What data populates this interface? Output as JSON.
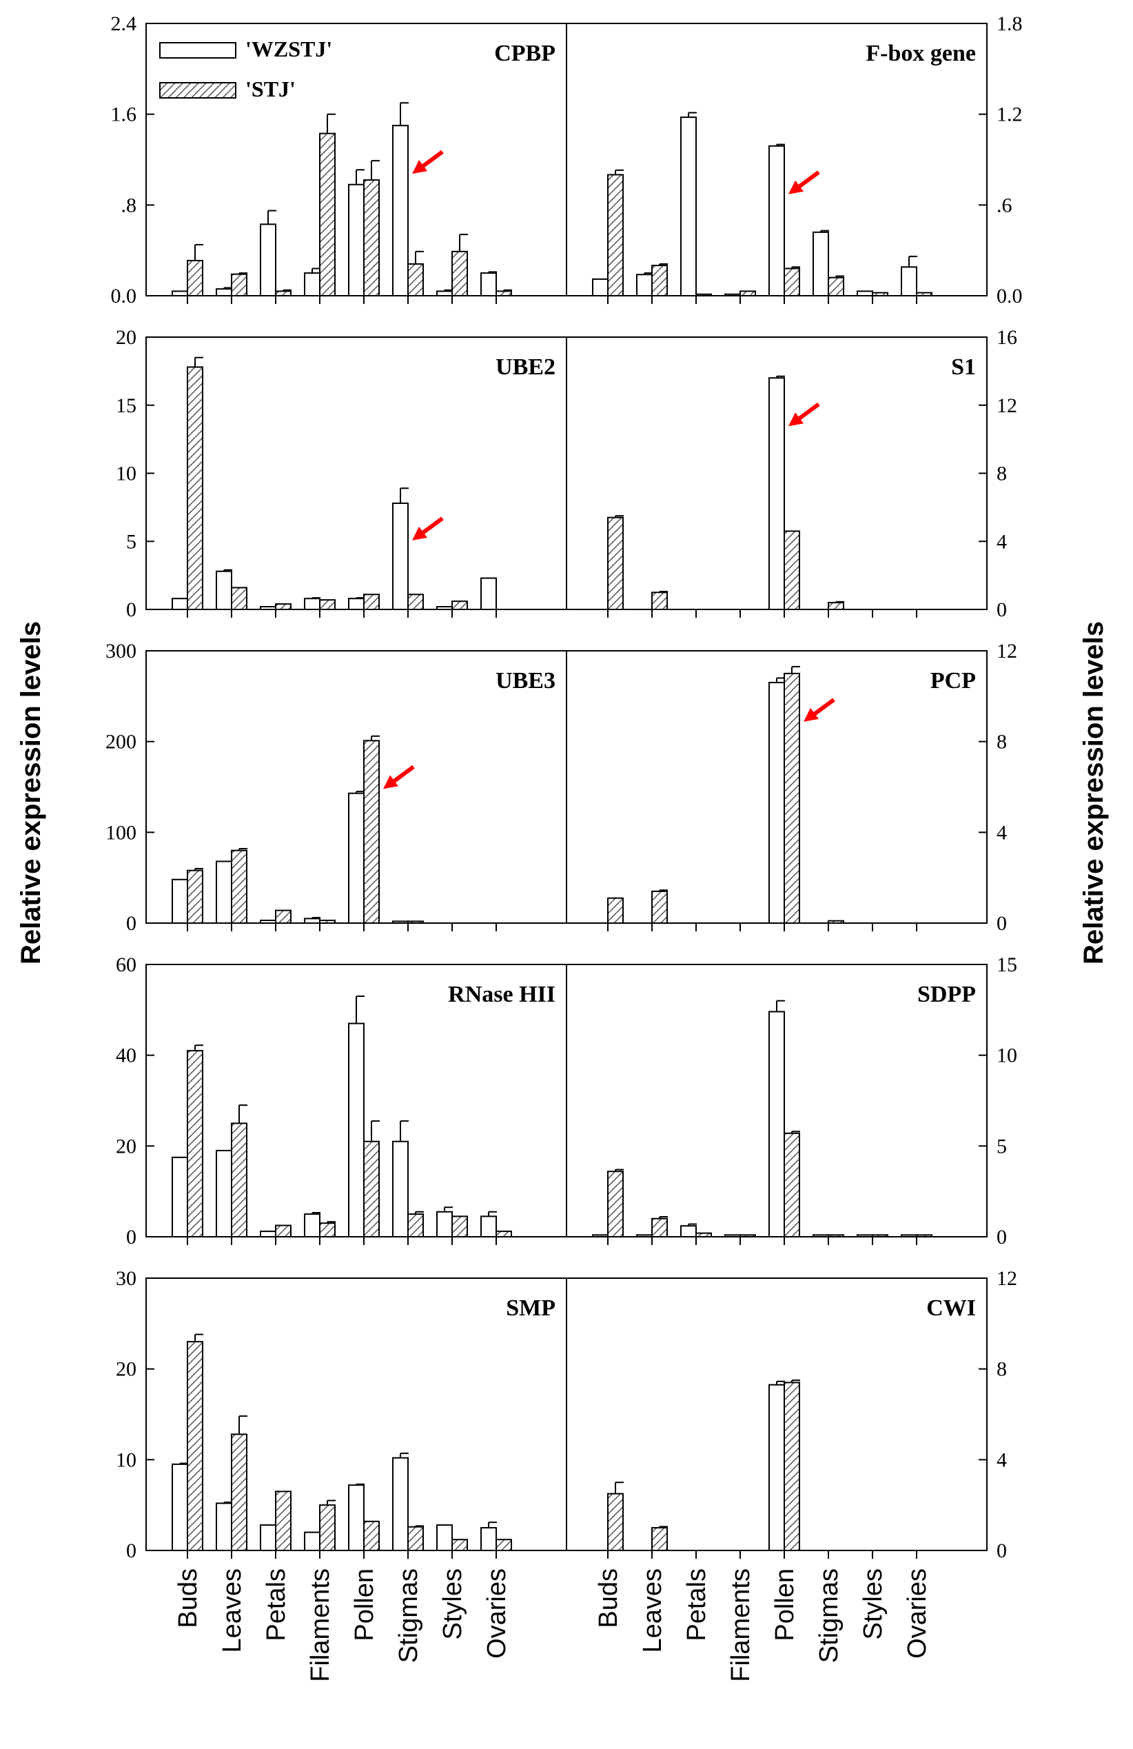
{
  "chart_data": {
    "type": "bar",
    "ylabel": "Relative expression levels",
    "categories": [
      "Buds",
      "Leaves",
      "Petals",
      "Filaments",
      "Pollen",
      "Stigmas",
      "Styles",
      "Ovaries"
    ],
    "legend": [
      {
        "name": "'WZSTJ'",
        "pattern": "open"
      },
      {
        "name": "'STJ'",
        "pattern": "hatched"
      }
    ],
    "arrow_color": "#ff0000",
    "panels": [
      {
        "title": "CPBP",
        "side": "left",
        "ylim": [
          0,
          2.4
        ],
        "ticks": [
          0,
          0.8,
          1.6,
          2.4
        ],
        "tick_labels": [
          "0.0",
          ".8",
          "1.6",
          "2.4"
        ],
        "series": [
          {
            "name": "'WZSTJ'",
            "values": [
              0.04,
              0.06,
              0.63,
              0.2,
              0.98,
              1.5,
              0.04,
              0.2
            ],
            "errors": [
              0,
              0.01,
              0.12,
              0.04,
              0.13,
              0.2,
              0.01,
              0.01
            ]
          },
          {
            "name": "'STJ'",
            "values": [
              0.31,
              0.19,
              0.04,
              1.43,
              1.02,
              0.28,
              0.39,
              0.04
            ],
            "errors": [
              0.14,
              0.01,
              0.01,
              0.17,
              0.17,
              0.11,
              0.15,
              0.01
            ]
          }
        ],
        "arrow": {
          "category": "Stigmas",
          "series": "'WZSTJ'"
        }
      },
      {
        "title": "F-box gene",
        "side": "right",
        "ylim": [
          0,
          1.8
        ],
        "ticks": [
          0,
          0.6,
          1.2,
          1.8
        ],
        "tick_labels": [
          "0.0",
          ".6",
          "1.2",
          "1.8"
        ],
        "series": [
          {
            "name": "'WZSTJ'",
            "values": [
              0.11,
              0.14,
              1.18,
              0.01,
              0.99,
              0.42,
              0.03,
              0.19
            ],
            "errors": [
              0,
              0.01,
              0.03,
              0,
              0.01,
              0.01,
              0,
              0.07
            ]
          },
          {
            "name": "'STJ'",
            "values": [
              0.8,
              0.2,
              0.01,
              0.03,
              0.18,
              0.12,
              0.02,
              0.02
            ],
            "errors": [
              0.03,
              0.01,
              0,
              0,
              0.01,
              0.01,
              0,
              0
            ]
          }
        ],
        "arrow": {
          "category": "Pollen",
          "series": "'WZSTJ'"
        }
      },
      {
        "title": "UBE2",
        "side": "left",
        "ylim": [
          0,
          20
        ],
        "ticks": [
          0,
          5,
          10,
          15,
          20
        ],
        "tick_labels": [
          "0",
          "5",
          "10",
          "15",
          "20"
        ],
        "series": [
          {
            "name": "'WZSTJ'",
            "values": [
              0.8,
              2.8,
              0.2,
              0.8,
              0.8,
              7.8,
              0.2,
              2.3
            ],
            "errors": [
              0,
              0.1,
              0,
              0.05,
              0.05,
              1.1,
              0,
              0
            ]
          },
          {
            "name": "'STJ'",
            "values": [
              17.8,
              1.6,
              0.4,
              0.7,
              1.1,
              1.1,
              0.6,
              0
            ],
            "errors": [
              0.7,
              0,
              0,
              0,
              0,
              0,
              0,
              0
            ]
          }
        ],
        "arrow": {
          "category": "Stigmas",
          "series": "'WZSTJ'"
        }
      },
      {
        "title": "S1",
        "side": "right",
        "ylim": [
          0,
          16
        ],
        "ticks": [
          0,
          4,
          8,
          12,
          16
        ],
        "tick_labels": [
          "0",
          "4",
          "8",
          "12",
          "16"
        ],
        "series": [
          {
            "name": "'WZSTJ'",
            "values": [
              0,
              0,
              0,
              0,
              13.6,
              0,
              0,
              0
            ],
            "errors": [
              0,
              0,
              0,
              0,
              0.1,
              0,
              0,
              0
            ]
          },
          {
            "name": "'STJ'",
            "values": [
              5.4,
              1.0,
              0,
              0,
              4.6,
              0.4,
              0,
              0
            ],
            "errors": [
              0.1,
              0.05,
              0,
              0,
              0,
              0.05,
              0,
              0
            ]
          }
        ],
        "arrow": {
          "category": "Pollen",
          "series": "'WZSTJ'"
        }
      },
      {
        "title": "UBE3",
        "side": "left",
        "ylim": [
          0,
          300
        ],
        "ticks": [
          0,
          100,
          200,
          300
        ],
        "tick_labels": [
          "0",
          "100",
          "200",
          "300"
        ],
        "series": [
          {
            "name": "'WZSTJ'",
            "values": [
              48,
              68,
              3,
              5,
              143,
              2,
              0,
              0
            ],
            "errors": [
              0,
              0,
              0,
              1,
              2,
              0,
              0,
              0
            ]
          },
          {
            "name": "'STJ'",
            "values": [
              58,
              80,
              14,
              3,
              201,
              2,
              0,
              0
            ],
            "errors": [
              2,
              2,
              0,
              0,
              5,
              0,
              0,
              0
            ]
          }
        ],
        "arrow": {
          "category": "Pollen",
          "series": "'STJ'"
        }
      },
      {
        "title": "PCP",
        "side": "right",
        "ylim": [
          0,
          12
        ],
        "ticks": [
          0,
          4,
          8,
          12
        ],
        "tick_labels": [
          "0",
          "4",
          "8",
          "12"
        ],
        "series": [
          {
            "name": "'WZSTJ'",
            "values": [
              0,
              0,
              0,
              0,
              10.6,
              0,
              0,
              0
            ],
            "errors": [
              0,
              0,
              0,
              0,
              0.2,
              0,
              0,
              0
            ]
          },
          {
            "name": "'STJ'",
            "values": [
              1.1,
              1.4,
              0,
              0,
              11.0,
              0.1,
              0,
              0
            ],
            "errors": [
              0,
              0.05,
              0,
              0,
              0.3,
              0,
              0,
              0
            ]
          }
        ],
        "arrow": {
          "category": "Pollen",
          "series": "'STJ'"
        }
      },
      {
        "title": "RNase HII",
        "side": "left",
        "ylim": [
          0,
          60
        ],
        "ticks": [
          0,
          20,
          40,
          60
        ],
        "tick_labels": [
          "0",
          "20",
          "40",
          "60"
        ],
        "series": [
          {
            "name": "'WZSTJ'",
            "values": [
              17.5,
              19,
              1.2,
              5,
              47,
              21,
              5.5,
              4.5
            ],
            "errors": [
              0,
              0,
              0,
              0.3,
              6,
              4.5,
              1,
              1
            ]
          },
          {
            "name": "'STJ'",
            "values": [
              41,
              25,
              2.5,
              3,
              21,
              5,
              4.5,
              1.2
            ],
            "errors": [
              1.2,
              4,
              0,
              0.3,
              4.5,
              0.5,
              0,
              0
            ]
          }
        ],
        "arrow": null
      },
      {
        "title": "SDPP",
        "side": "right",
        "ylim": [
          0,
          15
        ],
        "ticks": [
          0,
          5,
          10,
          15
        ],
        "tick_labels": [
          "0",
          "5",
          "10",
          "15"
        ],
        "series": [
          {
            "name": "'WZSTJ'",
            "values": [
              0.1,
              0.1,
              0.6,
              0.1,
              12.4,
              0.1,
              0.1,
              0.1
            ],
            "errors": [
              0,
              0,
              0.1,
              0,
              0.6,
              0,
              0,
              0
            ]
          },
          {
            "name": "'STJ'",
            "values": [
              3.6,
              1.0,
              0.2,
              0.1,
              5.7,
              0.1,
              0.1,
              0.1
            ],
            "errors": [
              0.1,
              0.1,
              0,
              0,
              0.1,
              0,
              0,
              0
            ]
          }
        ],
        "arrow": null
      },
      {
        "title": "SMP",
        "side": "left",
        "ylim": [
          0,
          30
        ],
        "ticks": [
          0,
          10,
          20,
          30
        ],
        "tick_labels": [
          "0",
          "10",
          "20",
          "30"
        ],
        "series": [
          {
            "name": "'WZSTJ'",
            "values": [
              9.5,
              5.2,
              2.8,
              2,
              7.2,
              10.2,
              2.8,
              2.5
            ],
            "errors": [
              0.1,
              0.1,
              0,
              0,
              0.1,
              0.5,
              0,
              0.6
            ]
          },
          {
            "name": "'STJ'",
            "values": [
              23,
              12.8,
              6.5,
              5,
              3.2,
              2.6,
              1.2,
              1.2
            ],
            "errors": [
              0.8,
              2,
              0,
              0.5,
              0,
              0.1,
              0,
              0
            ]
          }
        ],
        "arrow": null
      },
      {
        "title": "CWI",
        "side": "right",
        "ylim": [
          0,
          12
        ],
        "ticks": [
          0,
          4,
          8,
          12
        ],
        "tick_labels": [
          "0",
          "4",
          "8",
          "12"
        ],
        "series": [
          {
            "name": "'WZSTJ'",
            "values": [
              0,
              0,
              0,
              0,
              7.3,
              0,
              0,
              0
            ],
            "errors": [
              0,
              0,
              0,
              0,
              0.15,
              0,
              0,
              0
            ]
          },
          {
            "name": "'STJ'",
            "values": [
              2.5,
              1.0,
              0,
              0,
              7.4,
              0,
              0,
              0
            ],
            "errors": [
              0.5,
              0.05,
              0,
              0,
              0.1,
              0,
              0,
              0
            ]
          }
        ],
        "arrow": null
      }
    ]
  }
}
